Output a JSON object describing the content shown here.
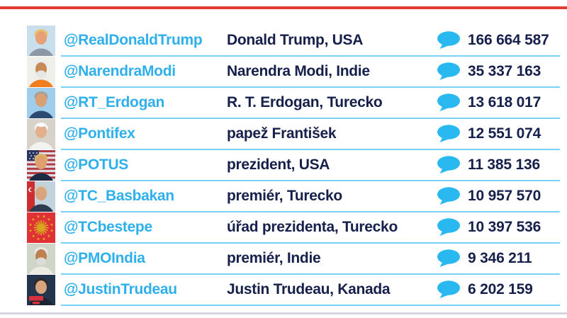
{
  "page": {
    "background": "#ffffff",
    "top_rule_color": "#e23b33",
    "bottom_rule_color": "#d5d5df",
    "row_underline_color": "#79d1f6",
    "handle_color": "#2fb0ec",
    "text_color": "#16204a",
    "bubble_color": "#29b9f0"
  },
  "icons": {
    "followers_icon": "speech-bubble"
  },
  "table": {
    "rows": [
      {
        "handle": "@RealDonaldTrump",
        "description": "Donald Trump, USA",
        "followers": "166 664 587",
        "avatar": {
          "type": "face",
          "bg": "#c9dfeb",
          "hair": "#e7c271",
          "skin": "#e8a077",
          "torso": "#8c98a6"
        }
      },
      {
        "handle": "@NarendraModi",
        "description": "Narendra Modi, Indie",
        "followers": "35 337 163",
        "avatar": {
          "type": "face",
          "bg": "#eef0e9",
          "hair": "#ececec",
          "skin": "#c68a55",
          "torso": "#f07d1e",
          "beard": "#e6e6e4"
        }
      },
      {
        "handle": "@RT_Erdogan",
        "description": "R. T. Erdogan, Turecko",
        "followers": "13 618 017",
        "avatar": {
          "type": "face",
          "bg": "#9fcdec",
          "hair": "#a89f96",
          "skin": "#d9a173",
          "torso": "#2c4a72"
        }
      },
      {
        "handle": "@Pontifex",
        "description": "papež František",
        "followers": "12 551 074",
        "avatar": {
          "type": "face",
          "bg": "#d7d3ca",
          "hair": "#f2f2f2",
          "skin": "#e2b18c",
          "torso": "#f3f3f0",
          "cap": "#fbfbfb"
        }
      },
      {
        "handle": "@POTUS",
        "description": "prezident, USA",
        "followers": "11 385 136",
        "avatar": {
          "type": "face",
          "flag": "usa",
          "bg": "#b23a42",
          "bg2": "#dfe0e6",
          "canton": "#2a3560",
          "hair": "#d9b264",
          "skin": "#dfa06e",
          "torso": "#1d2b45"
        }
      },
      {
        "handle": "@TC_Basbakan",
        "description": "premiér, Turecko",
        "followers": "10 957 570",
        "avatar": {
          "type": "face",
          "flag": "turkey",
          "bg": "#c3d3de",
          "flag_color": "#cf2e31",
          "hair": "#cfcac2",
          "skin": "#d9a47b",
          "torso": "#2e3a4d"
        }
      },
      {
        "handle": "@TCbestepe",
        "description": "úřad prezidenta, Turecko",
        "followers": "10 397 536",
        "avatar": {
          "type": "emblem",
          "bg": "#e03136",
          "gold": "#d9a51f"
        }
      },
      {
        "handle": "@PMOIndia",
        "description": "premiér, Indie",
        "followers": "9 346 211",
        "avatar": {
          "type": "face",
          "bg": "#cfd6c8",
          "hair": "#e8e8e8",
          "skin": "#bf7f4f",
          "torso": "#eceae2",
          "beard": "#dcdcd8"
        }
      },
      {
        "handle": "@JustinTrudeau",
        "description": "Justin Trudeau, Kanada",
        "followers": "6 202 159",
        "avatar": {
          "type": "face",
          "bg": "#23344d",
          "hair": "#2e2a26",
          "skin": "#d8a47e",
          "torso": "#1a2433",
          "badge": "#d8323e"
        }
      }
    ]
  }
}
